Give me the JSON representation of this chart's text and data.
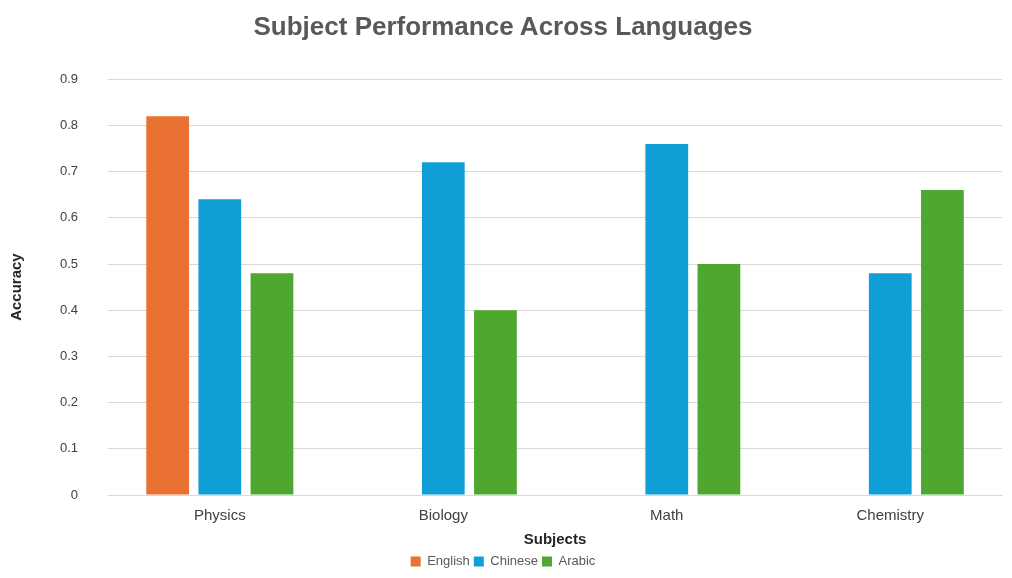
{
  "chart_data": {
    "type": "bar",
    "title": "Subject Performance Across Languages",
    "xlabel": "Subjects",
    "ylabel": "Accuracy",
    "categories": [
      "Physics",
      "Biology",
      "Math",
      "Chemistry"
    ],
    "series": [
      {
        "name": "English",
        "color": "#e97132",
        "values": [
          0.82,
          null,
          null,
          null
        ]
      },
      {
        "name": "Chinese",
        "color": "#0f9ed5",
        "values": [
          0.64,
          0.72,
          0.76,
          0.48
        ]
      },
      {
        "name": "Arabic",
        "color": "#4ea72e",
        "values": [
          0.48,
          0.4,
          0.5,
          0.66
        ]
      }
    ],
    "ylim": [
      0,
      0.9
    ],
    "yticks": [
      0,
      0.1,
      0.2,
      0.3,
      0.4,
      0.5,
      0.6,
      0.7,
      0.8,
      0.9
    ],
    "grid": "y",
    "legend": "bottom"
  }
}
